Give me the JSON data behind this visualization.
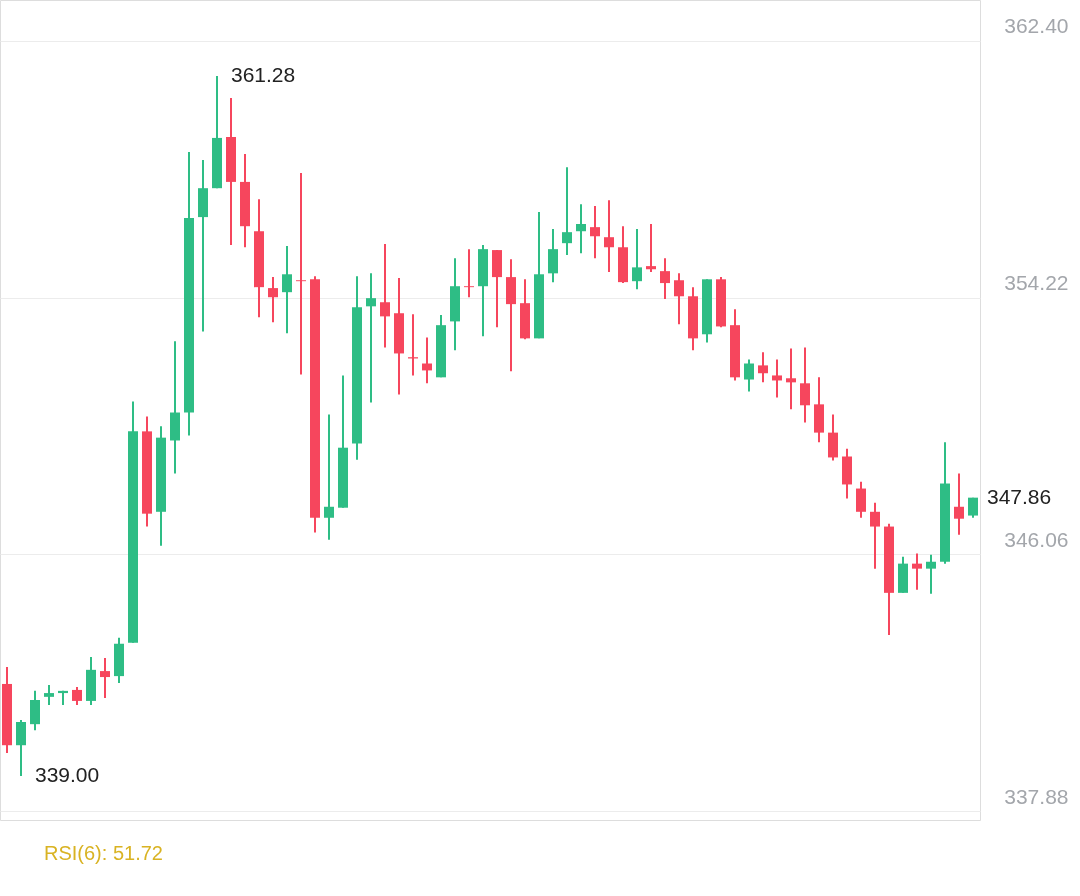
{
  "chart_data": {
    "type": "candlestick",
    "categories": [
      null,
      null,
      null,
      null,
      null,
      null,
      null,
      null,
      null,
      null,
      null,
      null,
      null,
      null,
      null,
      null,
      null,
      null,
      null,
      null,
      null,
      null,
      null,
      null,
      null,
      null,
      null,
      null,
      null,
      null,
      null,
      null,
      null,
      null,
      null,
      null,
      null,
      null,
      null,
      null,
      null,
      null,
      null,
      null,
      null,
      null,
      null,
      null,
      null,
      null,
      null,
      null,
      null,
      null,
      null,
      null,
      null,
      null,
      null,
      null,
      null,
      null,
      null,
      null,
      null,
      null,
      null,
      null,
      null,
      null
    ],
    "ohlc": [
      [
        341.93,
        342.47,
        339.73,
        339.98
      ],
      [
        339.98,
        340.78,
        339.0,
        340.72
      ],
      [
        340.65,
        341.71,
        340.46,
        341.42
      ],
      [
        341.52,
        341.9,
        341.26,
        341.64
      ],
      [
        341.64,
        341.71,
        341.26,
        341.71
      ],
      [
        341.74,
        341.83,
        341.26,
        341.39
      ],
      [
        341.39,
        342.79,
        341.26,
        342.38
      ],
      [
        342.34,
        342.76,
        341.48,
        342.15
      ],
      [
        342.18,
        343.4,
        341.96,
        343.21
      ],
      [
        343.24,
        350.92,
        343.24,
        349.97
      ],
      [
        349.97,
        350.44,
        346.94,
        347.35
      ],
      [
        347.41,
        350.13,
        346.33,
        349.77
      ],
      [
        349.68,
        352.84,
        348.63,
        350.57
      ],
      [
        350.57,
        358.86,
        349.84,
        356.76
      ],
      [
        356.79,
        358.61,
        353.15,
        357.71
      ],
      [
        357.71,
        361.28,
        357.71,
        359.31
      ],
      [
        359.34,
        360.58,
        355.9,
        357.91
      ],
      [
        357.91,
        358.8,
        355.83,
        356.5
      ],
      [
        356.34,
        357.36,
        353.6,
        354.56
      ],
      [
        354.53,
        354.88,
        353.44,
        354.24
      ],
      [
        354.4,
        355.87,
        353.09,
        354.97
      ],
      [
        354.78,
        358.19,
        351.78,
        354.75
      ],
      [
        354.81,
        354.91,
        346.75,
        347.22
      ],
      [
        347.22,
        350.51,
        346.52,
        347.57
      ],
      [
        347.54,
        351.75,
        347.54,
        349.45
      ],
      [
        349.58,
        354.91,
        349.07,
        353.92
      ],
      [
        353.95,
        355.0,
        350.89,
        354.21
      ],
      [
        354.08,
        355.93,
        352.64,
        353.63
      ],
      [
        353.73,
        354.85,
        351.14,
        352.45
      ],
      [
        352.33,
        353.7,
        351.75,
        352.29
      ],
      [
        352.13,
        352.96,
        351.5,
        351.91
      ],
      [
        351.69,
        353.67,
        351.69,
        353.35
      ],
      [
        353.47,
        355.48,
        352.55,
        354.59
      ],
      [
        354.59,
        355.77,
        354.24,
        354.56
      ],
      [
        354.59,
        355.9,
        353.0,
        355.77
      ],
      [
        355.74,
        355.74,
        353.28,
        354.88
      ],
      [
        354.88,
        355.45,
        351.88,
        354.02
      ],
      [
        354.05,
        354.81,
        352.9,
        352.93
      ],
      [
        352.93,
        356.95,
        352.93,
        354.97
      ],
      [
        355.0,
        356.41,
        354.72,
        355.77
      ],
      [
        355.96,
        358.38,
        355.58,
        356.31
      ],
      [
        356.34,
        357.2,
        355.64,
        356.57
      ],
      [
        356.47,
        357.14,
        355.48,
        356.18
      ],
      [
        356.15,
        357.33,
        355.04,
        355.83
      ],
      [
        355.83,
        356.5,
        354.69,
        354.72
      ],
      [
        354.75,
        356.41,
        354.49,
        355.19
      ],
      [
        355.23,
        356.57,
        355.04,
        355.13
      ],
      [
        355.07,
        355.48,
        354.18,
        354.69
      ],
      [
        354.78,
        355.0,
        353.38,
        354.27
      ],
      [
        354.27,
        354.56,
        352.55,
        352.93
      ],
      [
        353.06,
        354.81,
        352.8,
        354.81
      ],
      [
        354.81,
        354.88,
        353.28,
        353.31
      ],
      [
        353.35,
        353.86,
        351.59,
        351.69
      ],
      [
        351.62,
        352.26,
        351.24,
        352.13
      ],
      [
        352.07,
        352.49,
        351.53,
        351.82
      ],
      [
        351.75,
        352.26,
        351.05,
        351.59
      ],
      [
        351.66,
        352.61,
        350.67,
        351.53
      ],
      [
        351.5,
        352.64,
        350.25,
        350.8
      ],
      [
        350.83,
        351.69,
        349.62,
        349.93
      ],
      [
        349.93,
        350.51,
        349.04,
        349.14
      ],
      [
        349.17,
        349.42,
        347.83,
        348.28
      ],
      [
        348.15,
        348.37,
        347.22,
        347.41
      ],
      [
        347.41,
        347.7,
        345.6,
        346.94
      ],
      [
        346.94,
        347.03,
        343.49,
        344.83
      ],
      [
        344.83,
        345.98,
        344.83,
        345.76
      ],
      [
        345.76,
        346.08,
        344.93,
        345.6
      ],
      [
        345.6,
        346.04,
        344.8,
        345.82
      ],
      [
        345.82,
        349.62,
        345.76,
        348.31
      ],
      [
        347.57,
        348.63,
        346.68,
        347.19
      ],
      [
        347.29,
        347.86,
        347.22,
        347.86
      ]
    ],
    "colors": [
      "#f6465d",
      "#2ebd85",
      "#2ebd85",
      "#2ebd85",
      "#2ebd85",
      "#f6465d",
      "#2ebd85",
      "#f6465d",
      "#2ebd85",
      "#2ebd85",
      "#f6465d",
      "#2ebd85",
      "#2ebd85",
      "#2ebd85",
      "#2ebd85",
      "#2ebd85",
      "#f6465d",
      "#f6465d",
      "#f6465d",
      "#f6465d",
      "#2ebd85",
      "#f6465d",
      "#f6465d",
      "#2ebd85",
      "#2ebd85",
      "#2ebd85",
      "#2ebd85",
      "#f6465d",
      "#f6465d",
      "#f6465d",
      "#f6465d",
      "#2ebd85",
      "#2ebd85",
      "#f6465d",
      "#2ebd85",
      "#f6465d",
      "#f6465d",
      "#f6465d",
      "#2ebd85",
      "#2ebd85",
      "#2ebd85",
      "#2ebd85",
      "#f6465d",
      "#f6465d",
      "#f6465d",
      "#2ebd85",
      "#f6465d",
      "#f6465d",
      "#f6465d",
      "#f6465d",
      "#2ebd85",
      "#f6465d",
      "#f6465d",
      "#2ebd85",
      "#f6465d",
      "#f6465d",
      "#f6465d",
      "#f6465d",
      "#f6465d",
      "#f6465d",
      "#f6465d",
      "#f6465d",
      "#f6465d",
      "#f6465d",
      "#2ebd85",
      "#f6465d",
      "#2ebd85",
      "#2ebd85",
      "#f6465d",
      "#2ebd85"
    ],
    "ylim": [
      337.6,
      363.7
    ],
    "yticks": [
      337.88,
      346.06,
      354.22,
      {
        "value": 362.4,
        "label": "362.40"
      }
    ],
    "grid": "y",
    "tick_labels": "y",
    "annotations": [
      "361.28",
      "339.00",
      "347.86",
      "RSI(6): 51.72"
    ]
  }
}
